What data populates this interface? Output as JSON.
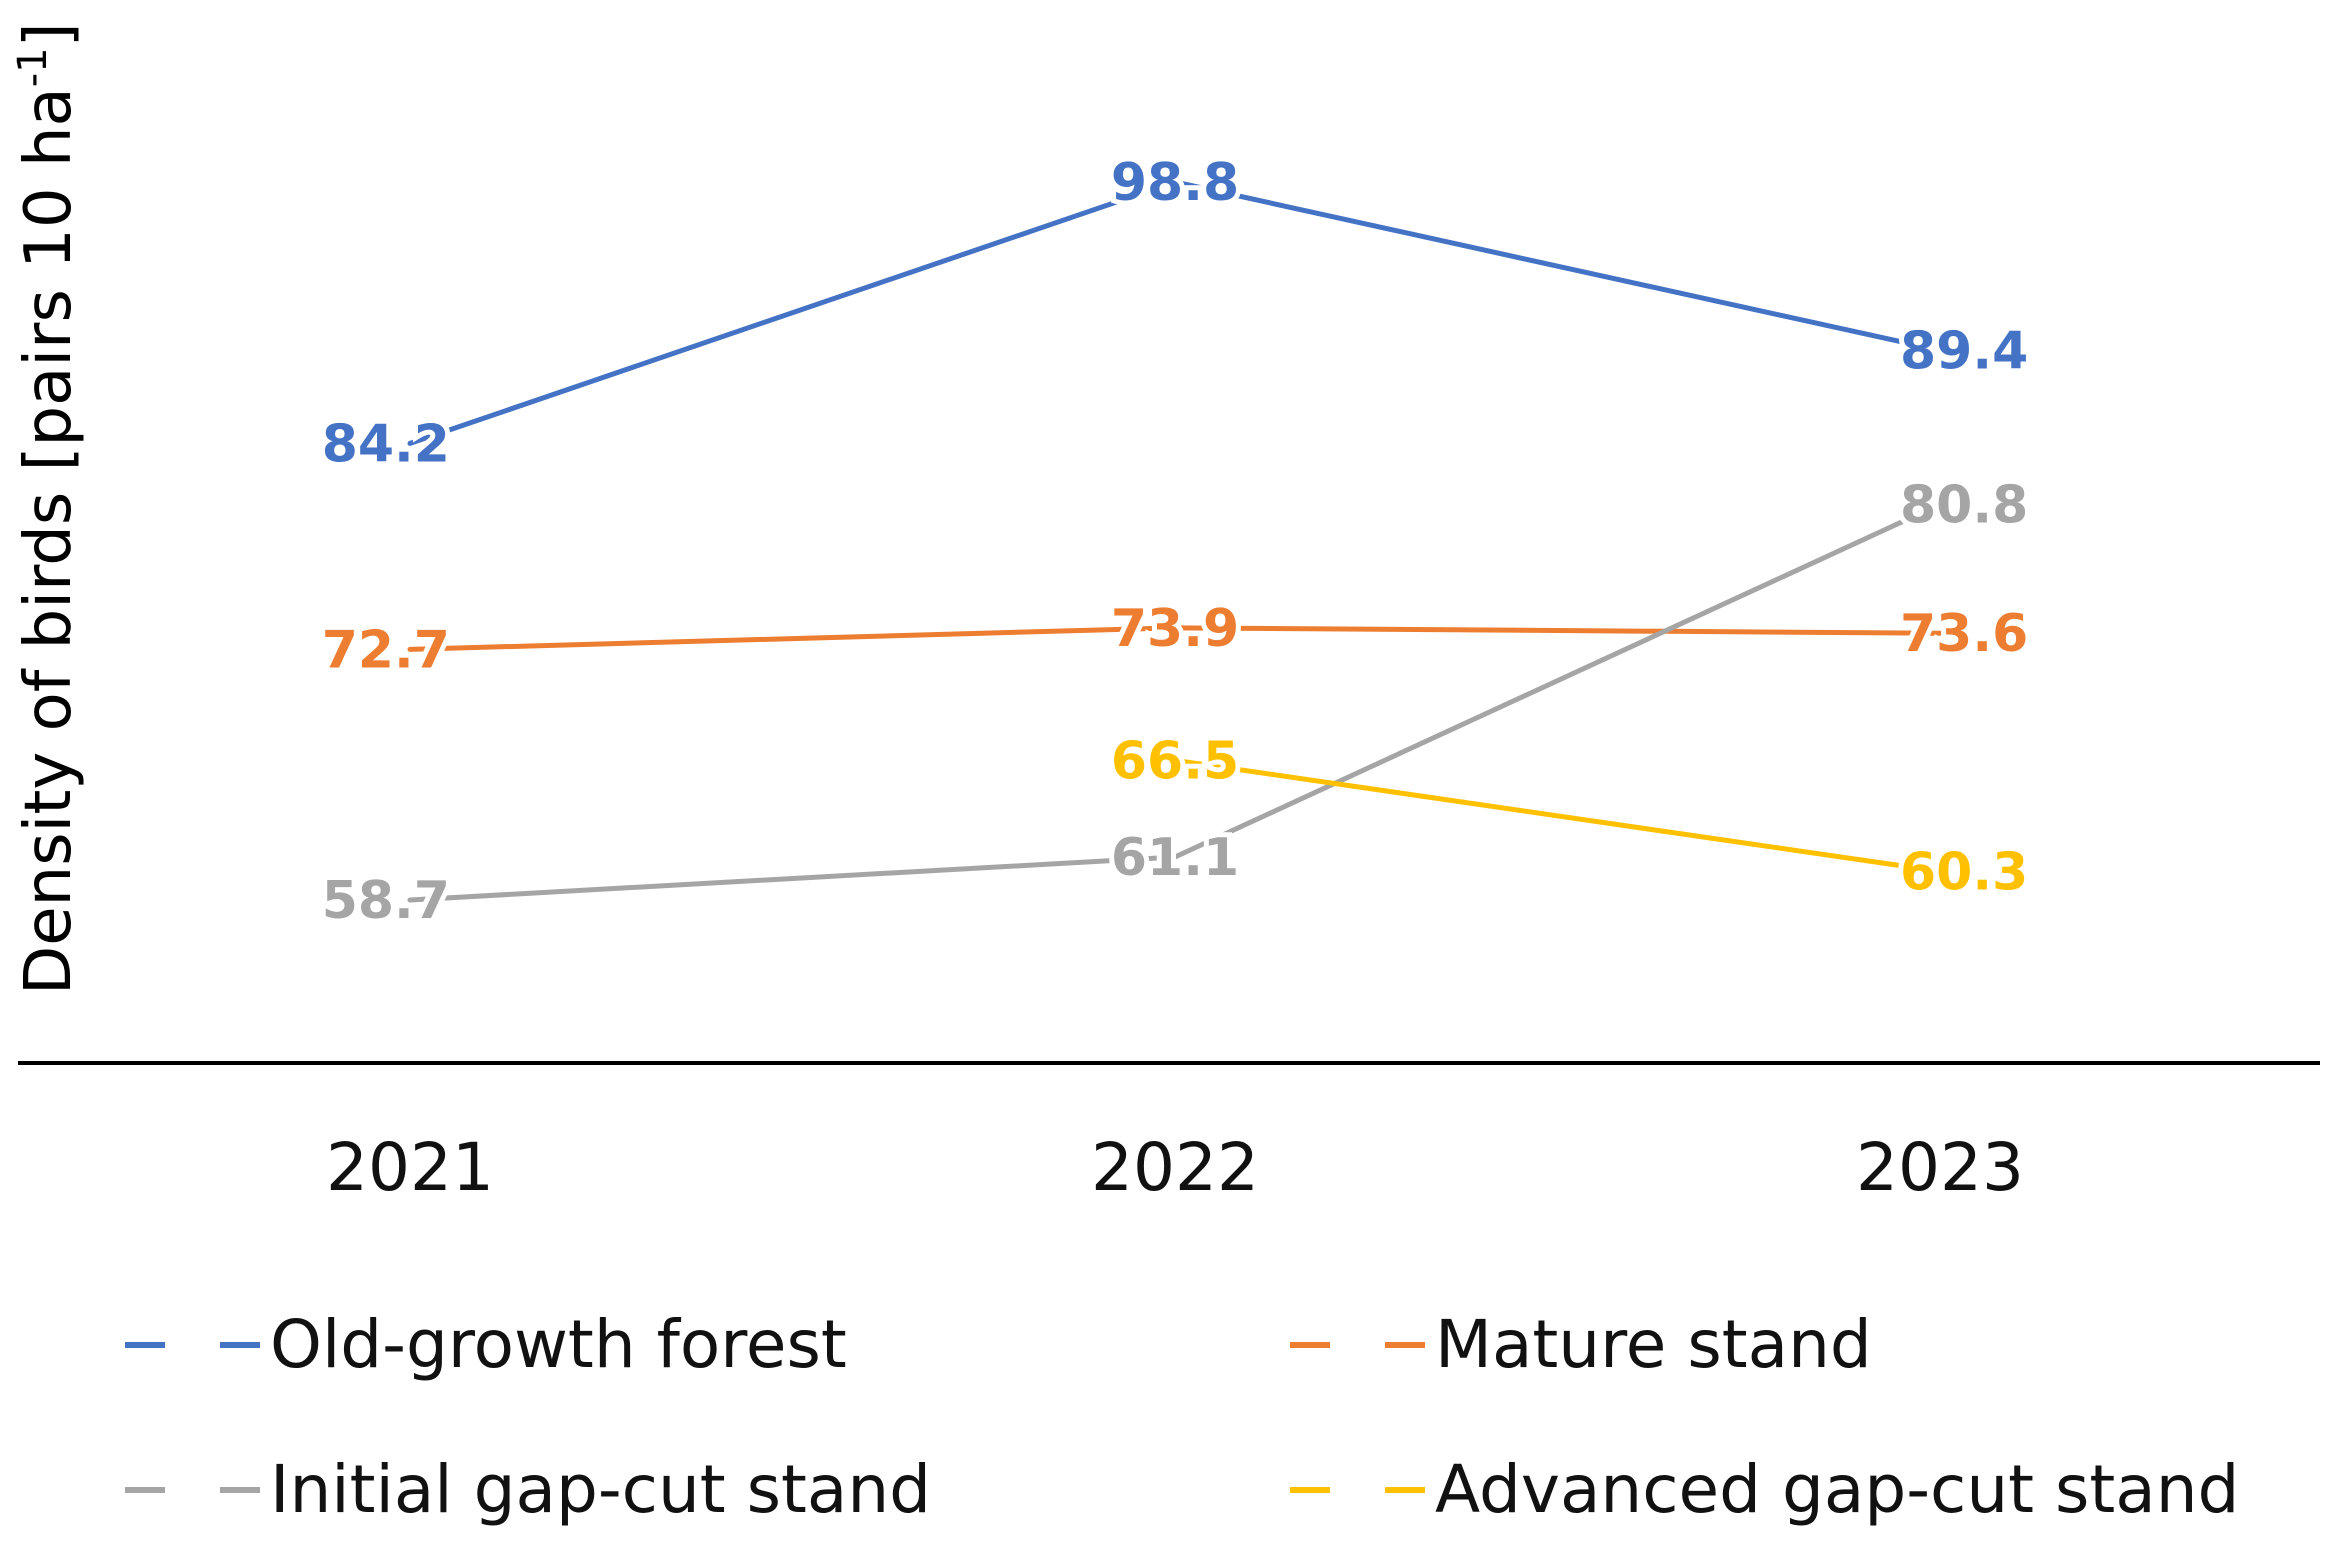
{
  "chart_data": {
    "type": "line",
    "title": "",
    "xlabel": "",
    "ylabel": "Density of birds [pairs 10 ha",
    "ylabel_superscript": "-1",
    "ylabel_close": "]",
    "categories": [
      "2021",
      "2022",
      "2023"
    ],
    "ylim": [
      50,
      105
    ],
    "grid": false,
    "legend_position": "bottom",
    "series": [
      {
        "name": "Old-growth forest",
        "color": "#4472C4",
        "values": [
          84.2,
          98.8,
          89.4
        ],
        "labels": [
          "84.2",
          "98.8",
          "89.4"
        ]
      },
      {
        "name": "Mature stand",
        "color": "#ED7D31",
        "values": [
          72.7,
          73.9,
          73.6
        ],
        "labels": [
          "72.7",
          "73.9",
          "73.6"
        ]
      },
      {
        "name": "Initial gap-cut stand",
        "color": "#A5A5A5",
        "values": [
          58.7,
          61.1,
          80.8
        ],
        "labels": [
          "58.7",
          "61.1",
          "80.8"
        ]
      },
      {
        "name": "Advanced gap-cut stand",
        "color": "#FFC000",
        "values": [
          null,
          66.5,
          60.3
        ],
        "labels": [
          null,
          "66.5",
          "60.3"
        ]
      }
    ]
  }
}
